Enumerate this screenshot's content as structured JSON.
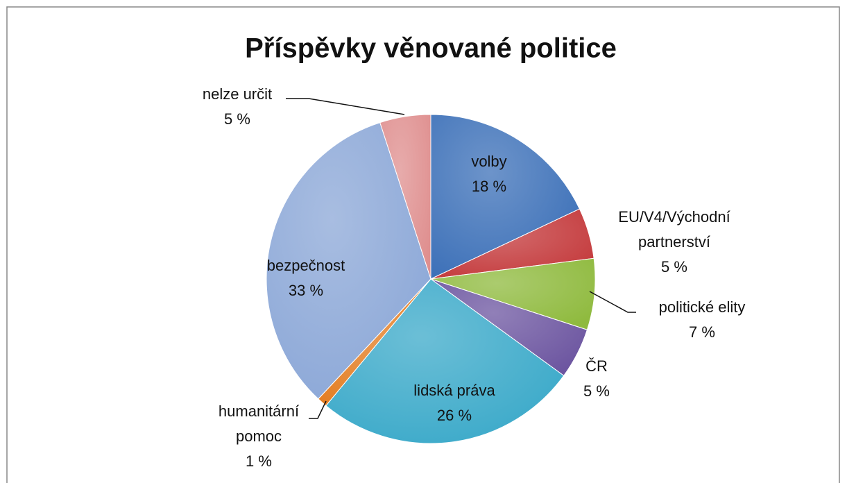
{
  "chart_data": {
    "type": "pie",
    "title": "Příspěvky věnované politice",
    "categories": [
      "volby",
      "EU/V4/Východní partnerství",
      "politické elity",
      "ČR",
      "lidská práva",
      "humanitární pomoc",
      "bezpečnost",
      "nelze určit"
    ],
    "values": [
      18,
      5,
      7,
      5,
      26,
      1,
      33,
      5
    ],
    "value_labels": [
      "18 %",
      "5 %",
      "7 %",
      "5 %",
      "26 %",
      "1 %",
      "33 %",
      "5 %"
    ],
    "colors": [
      "#3c70b8",
      "#c43a3c",
      "#8fba3e",
      "#6c55a0",
      "#3aa9c9",
      "#e37d22",
      "#8ba7d7",
      "#df8f8f"
    ]
  }
}
